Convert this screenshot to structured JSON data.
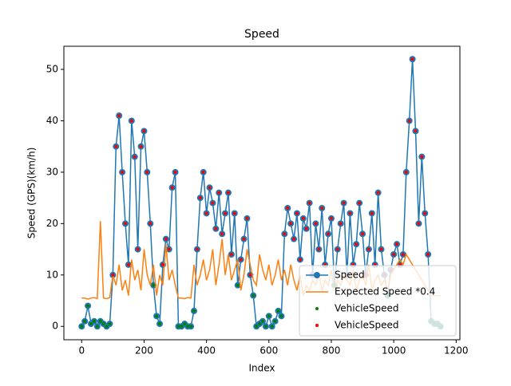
{
  "chart_data": {
    "type": "line",
    "title": "Speed",
    "x_label": "Index",
    "y_label": "Speed (GPS)(km/h)",
    "x": [
      0,
      10,
      20,
      30,
      40,
      50,
      60,
      70,
      80,
      90,
      100,
      110,
      120,
      130,
      140,
      150,
      160,
      170,
      180,
      190,
      200,
      210,
      220,
      230,
      240,
      250,
      260,
      270,
      280,
      290,
      300,
      310,
      320,
      330,
      340,
      350,
      360,
      370,
      380,
      390,
      400,
      410,
      420,
      430,
      440,
      450,
      460,
      470,
      480,
      490,
      500,
      510,
      520,
      530,
      540,
      550,
      560,
      570,
      580,
      590,
      600,
      610,
      620,
      630,
      640,
      650,
      660,
      670,
      680,
      690,
      700,
      710,
      720,
      730,
      740,
      750,
      760,
      770,
      780,
      790,
      800,
      810,
      820,
      830,
      840,
      850,
      860,
      870,
      880,
      890,
      900,
      910,
      920,
      930,
      940,
      950,
      960,
      970,
      980,
      990,
      1000,
      1010,
      1020,
      1030,
      1040,
      1050,
      1060,
      1070,
      1080,
      1090,
      1100,
      1110,
      1120,
      1130,
      1140,
      1150
    ],
    "series": [
      {
        "name": "Speed",
        "color": "#1f77b4",
        "line": true,
        "marker": true,
        "values": [
          0,
          1,
          4,
          0.5,
          1,
          0,
          1,
          0.5,
          0,
          0.5,
          10,
          35,
          41,
          30,
          20,
          12,
          40,
          33,
          15,
          35,
          38,
          30,
          20,
          8,
          2,
          0.5,
          12,
          17,
          15,
          27,
          30,
          0,
          0,
          0.5,
          0,
          0,
          3,
          15,
          25,
          30,
          22,
          27,
          24,
          19,
          26,
          18,
          22,
          26,
          14,
          22,
          8,
          13,
          17,
          21,
          10,
          6,
          0,
          0.5,
          1,
          0,
          2,
          0,
          1,
          3,
          2,
          18,
          23,
          20,
          17,
          22,
          13,
          21,
          19,
          24,
          10,
          20,
          15,
          23,
          12,
          18,
          21,
          8,
          15,
          20,
          24,
          10,
          22,
          12,
          16,
          24,
          18,
          10,
          15,
          22,
          12,
          26,
          15,
          10,
          6,
          11,
          14,
          16,
          12,
          14,
          30,
          40,
          52,
          38,
          20,
          33,
          22,
          14,
          1,
          0.5,
          0.5,
          0
        ]
      },
      {
        "name": "Expected Speed *0.4",
        "color": "#ff7f0e",
        "line": true,
        "marker": false,
        "values": [
          5.5,
          5.5,
          5.3,
          5.5,
          5.6,
          5.4,
          20.5,
          5.5,
          5.4,
          5.6,
          10,
          8,
          12,
          7,
          9,
          6,
          13,
          9,
          11,
          7,
          15,
          10,
          8,
          12,
          6,
          10,
          8,
          16,
          9,
          11,
          8,
          5.5,
          5.5,
          5.4,
          5.6,
          5.5,
          12,
          8,
          10,
          13,
          9,
          11,
          15,
          8,
          12,
          17,
          10,
          14,
          9,
          11,
          13,
          7,
          10,
          15,
          12,
          9,
          8,
          14,
          11,
          9,
          12,
          8,
          10,
          13,
          9,
          11,
          8,
          12,
          9,
          7,
          10,
          6,
          8,
          7,
          9,
          8,
          10,
          7,
          9,
          8,
          11,
          7,
          9,
          8,
          10,
          9,
          8,
          11,
          7,
          9,
          10,
          8,
          12,
          7,
          9,
          10,
          8,
          9,
          7,
          10,
          11,
          12,
          13,
          12,
          14,
          13,
          12,
          11,
          10,
          9,
          8,
          7,
          6,
          6,
          6,
          6
        ]
      },
      {
        "name": "VehicleSpeed",
        "color": "#008000",
        "line": false,
        "marker": true,
        "values": [
          0,
          1,
          4,
          0.5,
          1,
          0,
          1,
          0.5,
          0,
          0.5,
          null,
          null,
          null,
          null,
          null,
          null,
          null,
          null,
          null,
          null,
          null,
          null,
          null,
          8,
          2,
          0.5,
          null,
          null,
          null,
          null,
          null,
          0,
          0,
          0.5,
          0,
          0,
          3,
          null,
          null,
          null,
          null,
          null,
          null,
          null,
          null,
          null,
          null,
          null,
          null,
          null,
          8,
          null,
          null,
          null,
          null,
          6,
          0,
          0.5,
          1,
          0,
          2,
          0,
          1,
          3,
          2,
          null,
          null,
          null,
          null,
          null,
          null,
          null,
          null,
          null,
          null,
          null,
          null,
          null,
          null,
          null,
          null,
          8,
          null,
          null,
          null,
          null,
          null,
          null,
          null,
          null,
          null,
          null,
          null,
          null,
          null,
          null,
          null,
          null,
          6,
          null,
          null,
          null,
          null,
          null,
          null,
          null,
          null,
          null,
          null,
          null,
          null,
          null,
          1,
          0.5,
          0.5,
          0
        ]
      },
      {
        "name": "VehicleSpeed",
        "color": "#ff0000",
        "line": false,
        "marker": true,
        "values": [
          null,
          null,
          null,
          null,
          null,
          null,
          null,
          null,
          null,
          null,
          10,
          35,
          41,
          30,
          20,
          12,
          40,
          33,
          15,
          35,
          38,
          30,
          20,
          null,
          null,
          null,
          12,
          17,
          15,
          27,
          30,
          null,
          null,
          null,
          null,
          null,
          null,
          15,
          25,
          30,
          22,
          27,
          24,
          19,
          26,
          18,
          22,
          26,
          14,
          22,
          null,
          13,
          17,
          21,
          10,
          null,
          null,
          null,
          null,
          null,
          null,
          null,
          null,
          null,
          null,
          18,
          23,
          20,
          17,
          22,
          13,
          21,
          19,
          24,
          10,
          20,
          15,
          23,
          12,
          18,
          21,
          null,
          15,
          20,
          24,
          10,
          22,
          12,
          16,
          24,
          18,
          10,
          15,
          22,
          12,
          26,
          15,
          10,
          null,
          11,
          14,
          16,
          12,
          14,
          30,
          40,
          52,
          38,
          20,
          33,
          22,
          14,
          null,
          null,
          null,
          null
        ]
      }
    ],
    "xlim": [
      -57,
      1212
    ],
    "ylim": [
      -2.6,
      54.5
    ],
    "xticks": [
      0,
      200,
      400,
      600,
      800,
      1000,
      1200
    ],
    "yticks": [
      0,
      10,
      20,
      30,
      40,
      50
    ],
    "legend": "lower right"
  }
}
